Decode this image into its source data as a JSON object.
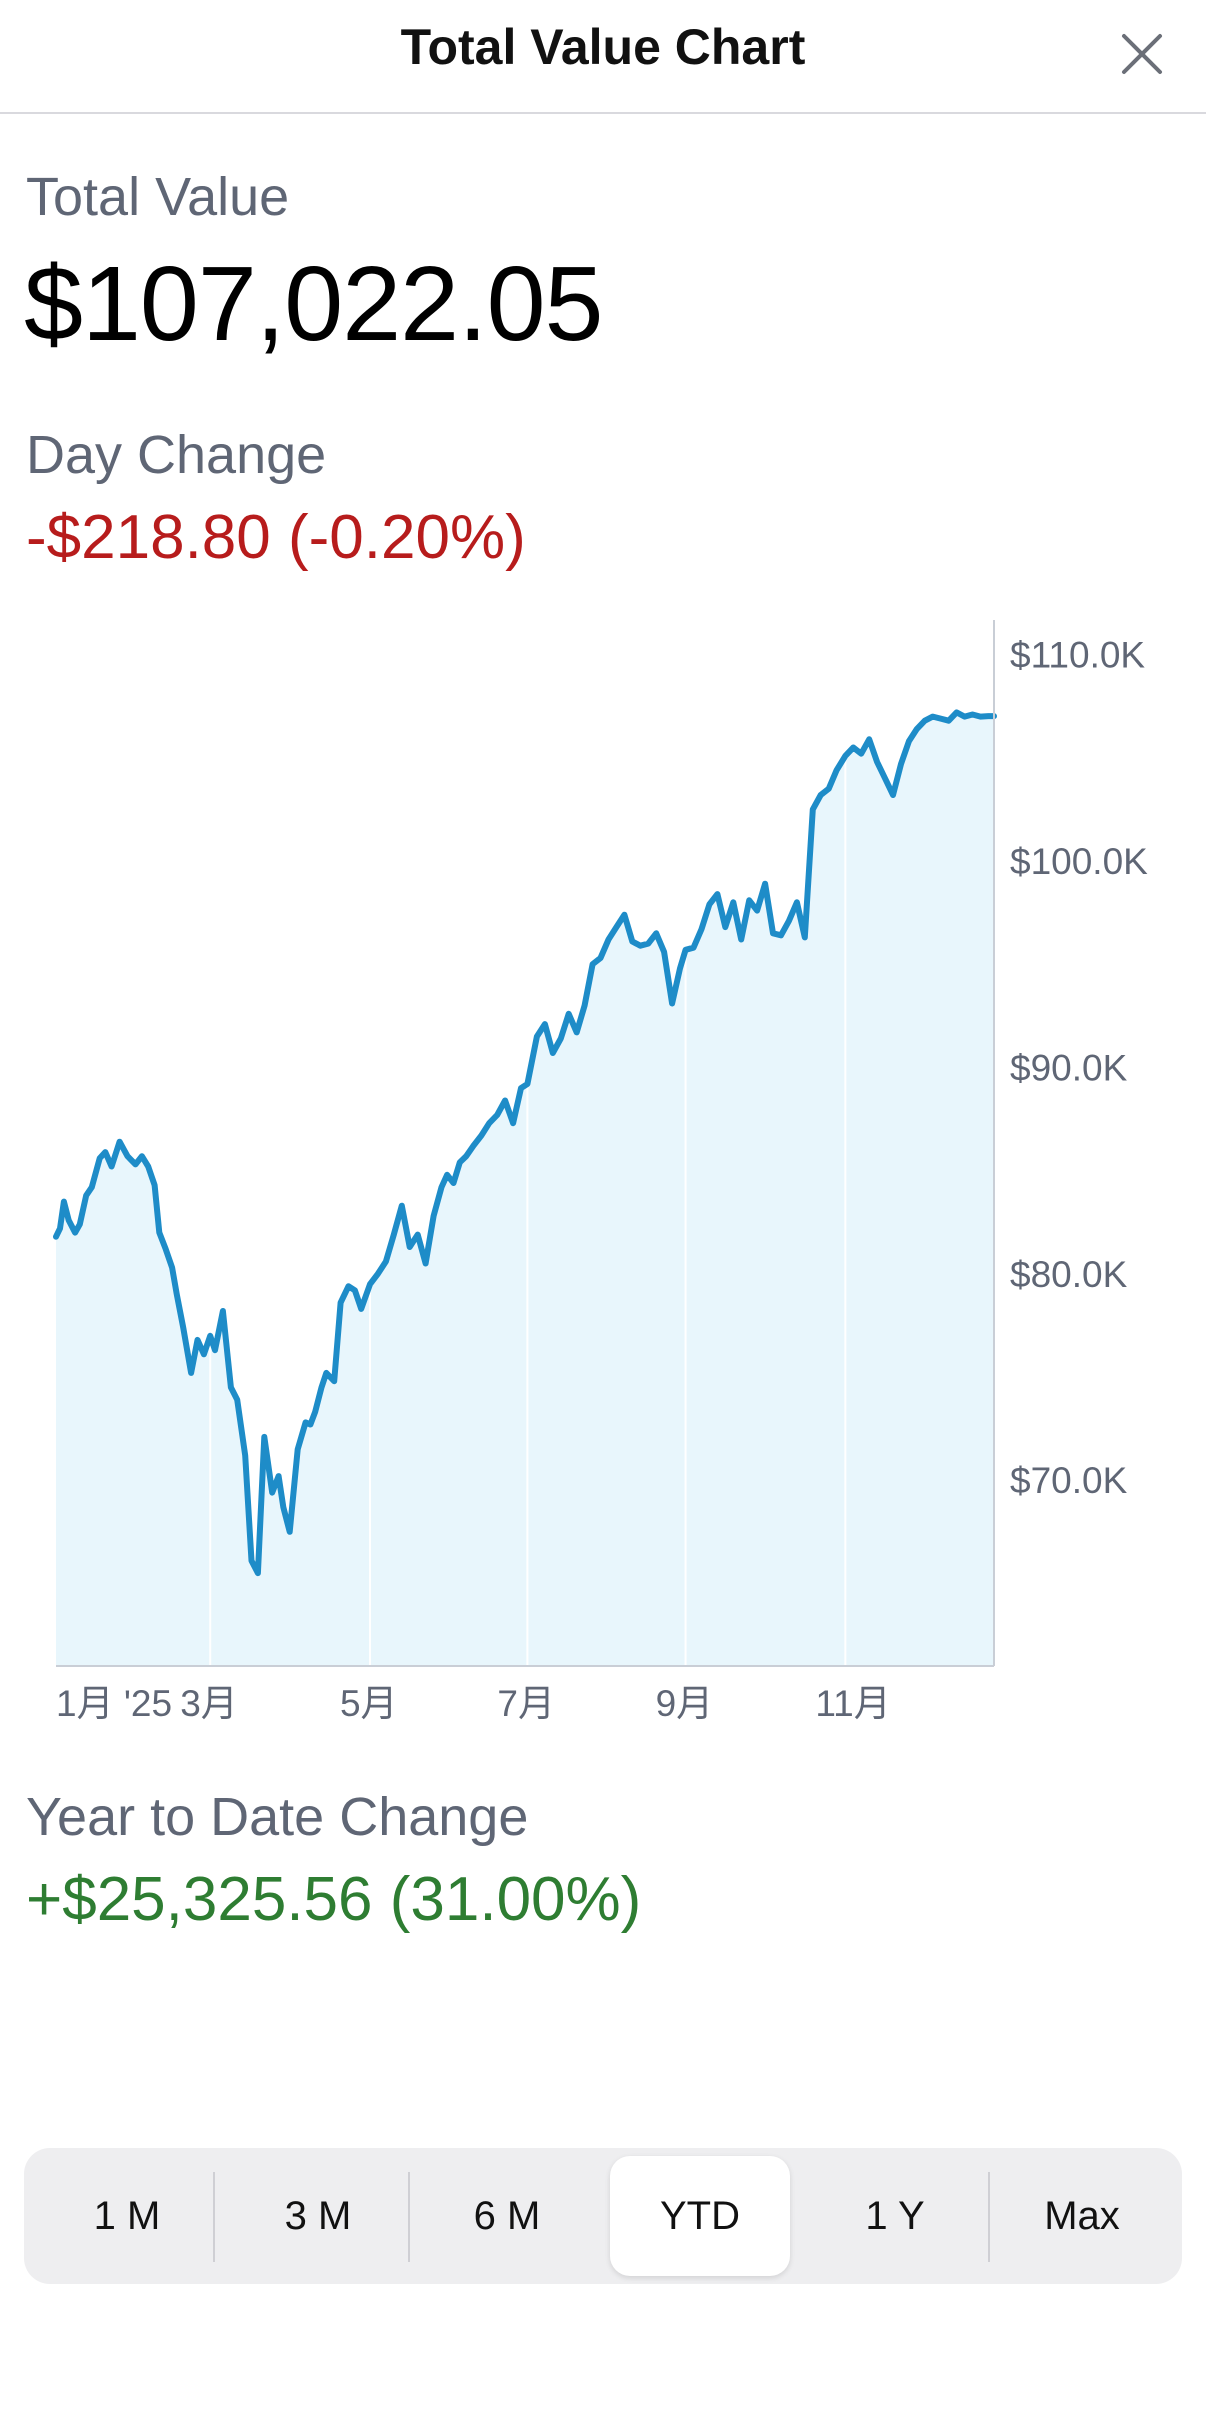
{
  "header": {
    "title": "Total Value Chart",
    "close_icon": "close-icon"
  },
  "total_value": {
    "label": "Total Value",
    "value": "$107,022.05"
  },
  "day_change": {
    "label": "Day Change",
    "value": "-$218.80 (-0.20%)",
    "color": "#b71c1c"
  },
  "ytd_change": {
    "label": "Year to Date Change",
    "value": "+$25,325.56 (31.00%)",
    "color": "#2e7d32"
  },
  "chart_data": {
    "type": "area",
    "y_tick_labels": [
      "$110.0K",
      "$100.0K",
      "$90.0K",
      "$80.0K",
      "$70.0K"
    ],
    "y_ticks": [
      110000,
      100000,
      90000,
      80000,
      70000
    ],
    "ylim": [
      61000,
      111000
    ],
    "x_tick_labels": [
      "1月 '25",
      "3月",
      "5月",
      "7月",
      "9月",
      "11月"
    ],
    "x_ticks": [
      0,
      1.94,
      3.95,
      5.93,
      7.92,
      9.93
    ],
    "xlim": [
      0,
      11.8
    ],
    "x": [
      0,
      0.05,
      0.1,
      0.16,
      0.24,
      0.3,
      0.38,
      0.45,
      0.55,
      0.62,
      0.7,
      0.8,
      0.9,
      1.0,
      1.08,
      1.16,
      1.24,
      1.3,
      1.38,
      1.46,
      1.52,
      1.6,
      1.7,
      1.78,
      1.86,
      1.94,
      2.0,
      2.1,
      2.2,
      2.28,
      2.38,
      2.46,
      2.54,
      2.62,
      2.72,
      2.8,
      2.86,
      2.94,
      3.04,
      3.14,
      3.2,
      3.26,
      3.34,
      3.4,
      3.5,
      3.58,
      3.68,
      3.76,
      3.84,
      3.95,
      4.05,
      4.15,
      4.25,
      4.35,
      4.45,
      4.55,
      4.65,
      4.75,
      4.85,
      4.92,
      5.0,
      5.08,
      5.16,
      5.25,
      5.35,
      5.45,
      5.55,
      5.65,
      5.75,
      5.85,
      5.93,
      6.05,
      6.15,
      6.25,
      6.35,
      6.45,
      6.55,
      6.65,
      6.75,
      6.85,
      6.95,
      7.05,
      7.15,
      7.25,
      7.35,
      7.45,
      7.55,
      7.65,
      7.75,
      7.85,
      7.92,
      8.02,
      8.12,
      8.22,
      8.32,
      8.42,
      8.52,
      8.62,
      8.72,
      8.82,
      8.92,
      9.02,
      9.12,
      9.22,
      9.32,
      9.42,
      9.52,
      9.62,
      9.72,
      9.82,
      9.93,
      10.03,
      10.13,
      10.23,
      10.33,
      10.43,
      10.53,
      10.63,
      10.73,
      10.83,
      10.93,
      11.03,
      11.13,
      11.23,
      11.33,
      11.43,
      11.53,
      11.63,
      11.73,
      11.8
    ],
    "y": [
      81800,
      82200,
      83500,
      82600,
      82000,
      82400,
      83800,
      84200,
      85600,
      85900,
      85200,
      86400,
      85700,
      85300,
      85700,
      85200,
      84300,
      82000,
      81200,
      80300,
      79000,
      77400,
      75200,
      76800,
      76100,
      77000,
      76300,
      78200,
      74500,
      73900,
      71200,
      66100,
      65500,
      72100,
      69400,
      70200,
      68700,
      67500,
      71500,
      72800,
      72700,
      73300,
      74500,
      75200,
      74800,
      78600,
      79400,
      79200,
      78300,
      79500,
      80000,
      80600,
      81900,
      83300,
      81300,
      81900,
      80500,
      82800,
      84200,
      84800,
      84400,
      85400,
      85700,
      86200,
      86700,
      87300,
      87700,
      88400,
      87300,
      89000,
      89200,
      91500,
      92100,
      90700,
      91400,
      92600,
      91700,
      93000,
      95000,
      95300,
      96200,
      96800,
      97400,
      96100,
      95900,
      96000,
      96500,
      95600,
      93100,
      94800,
      95700,
      95800,
      96700,
      97900,
      98400,
      96800,
      98000,
      96200,
      98100,
      97600,
      98900,
      96500,
      96400,
      97100,
      98000,
      96300,
      102500,
      103200,
      103500,
      104400,
      105100,
      105500,
      105200,
      105900,
      104800,
      104000,
      103200,
      104700,
      105800,
      106400,
      106800,
      107000,
      106900,
      106800,
      107200,
      107000,
      107100,
      107000,
      107022,
      107022
    ]
  },
  "range_selector": {
    "options": [
      "1 M",
      "3 M",
      "6 M",
      "YTD",
      "1 Y",
      "Max"
    ],
    "selected": "YTD"
  },
  "colors": {
    "line": "#1e8cc8",
    "fill": "#e8f6fc",
    "gridline": "#ffffff",
    "axis": "#c9ced6"
  }
}
